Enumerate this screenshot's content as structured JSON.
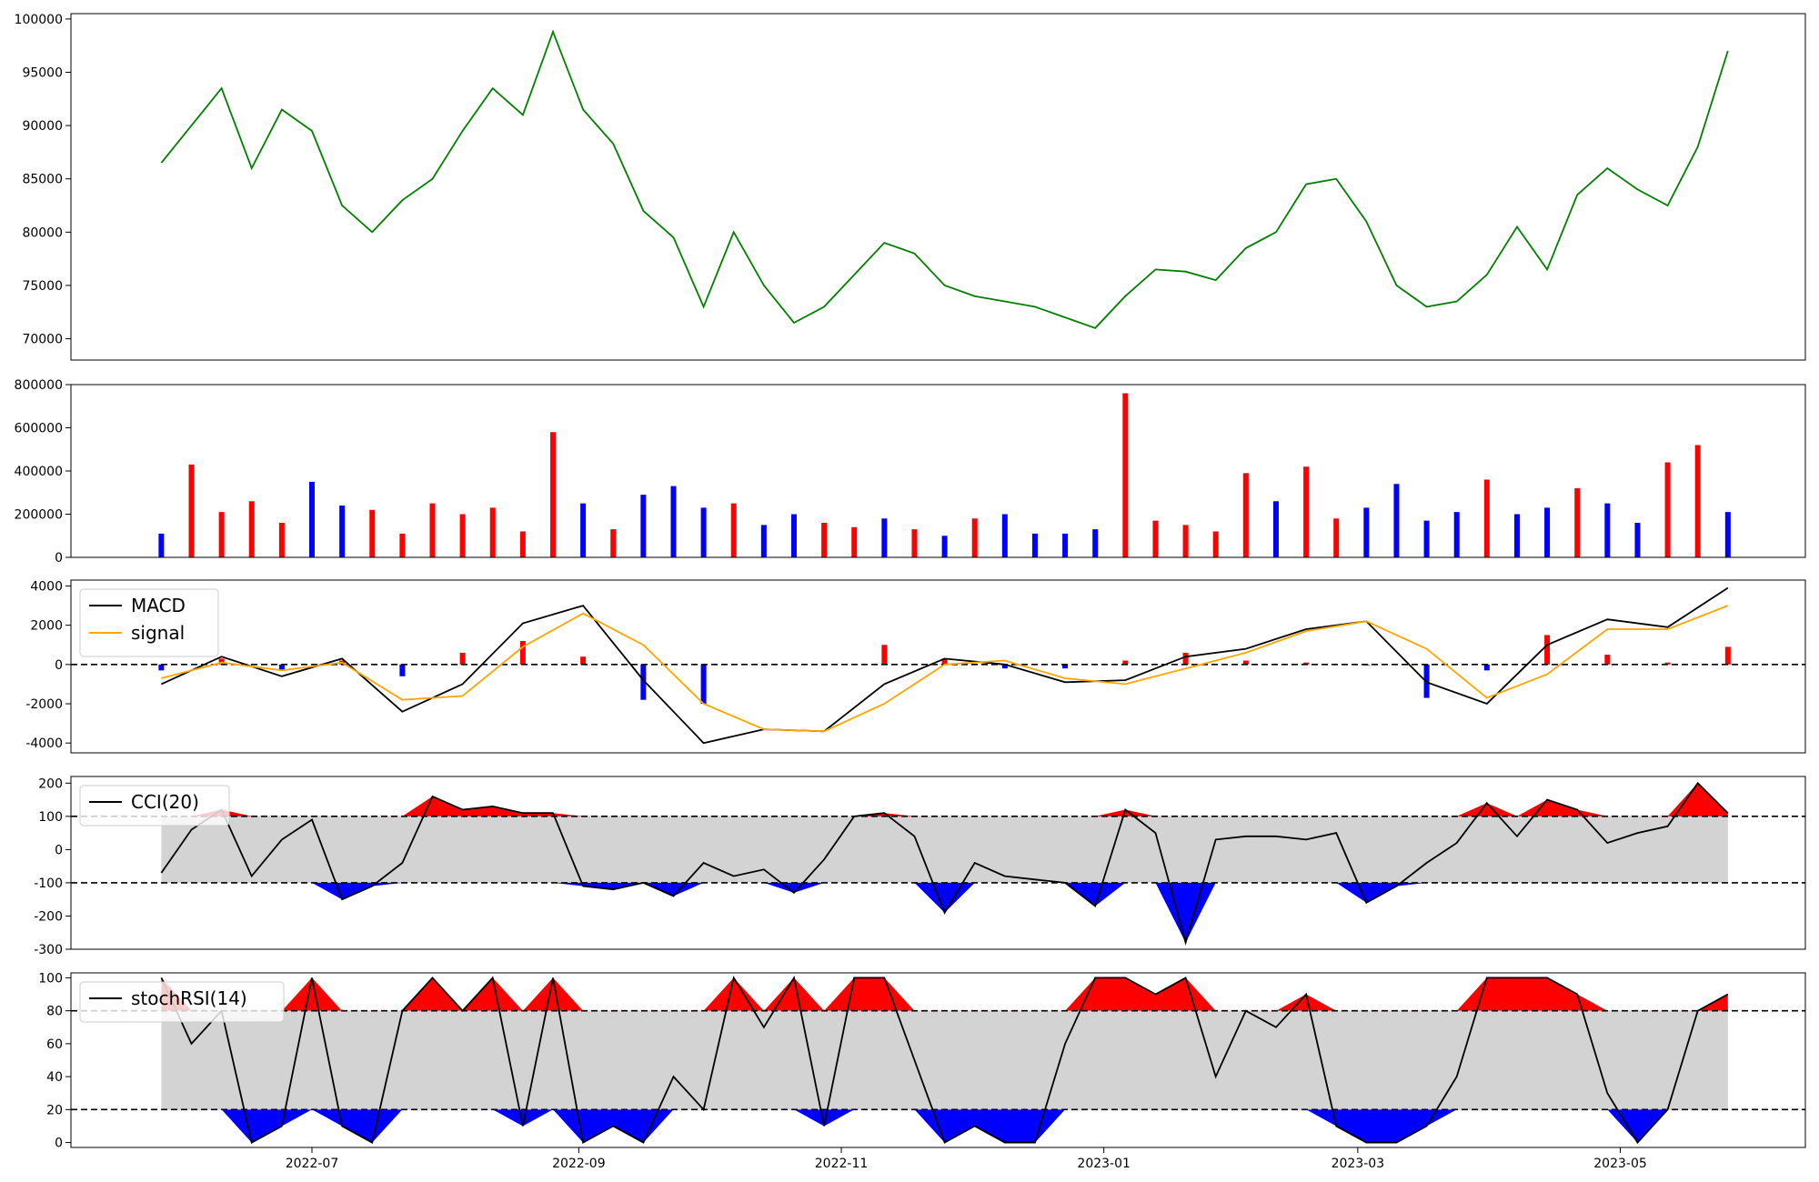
{
  "chart_data": [
    {
      "type": "line",
      "panel": "price",
      "ylim": [
        68000,
        100500
      ],
      "yticks": [
        70000,
        75000,
        80000,
        85000,
        90000,
        95000,
        100000
      ],
      "color": "#008000",
      "series": [
        {
          "x": [
            "2022-05-27",
            "2022-06-03",
            "2022-06-10",
            "2022-06-17",
            "2022-06-24",
            "2022-07-01",
            "2022-07-08",
            "2022-07-15",
            "2022-07-22",
            "2022-07-29",
            "2022-08-05",
            "2022-08-12",
            "2022-08-19",
            "2022-08-26",
            "2022-09-02",
            "2022-09-09",
            "2022-09-16",
            "2022-09-23",
            "2022-09-30",
            "2022-10-07",
            "2022-10-14",
            "2022-10-21",
            "2022-10-28",
            "2022-11-04",
            "2022-11-11",
            "2022-11-18",
            "2022-11-25",
            "2022-12-02",
            "2022-12-09",
            "2022-12-16",
            "2022-12-23",
            "2022-12-30",
            "2023-01-06",
            "2023-01-13",
            "2023-01-20",
            "2023-01-27",
            "2023-02-03",
            "2023-02-10",
            "2023-02-17",
            "2023-02-24",
            "2023-03-03",
            "2023-03-10",
            "2023-03-17",
            "2023-03-24",
            "2023-03-31",
            "2023-04-07",
            "2023-04-14",
            "2023-04-21",
            "2023-04-28",
            "2023-05-05",
            "2023-05-12",
            "2023-05-19",
            "2023-05-26"
          ],
          "values": [
            86500,
            90000,
            93500,
            86000,
            91500,
            89500,
            82500,
            80000,
            83000,
            85000,
            89500,
            93500,
            91000,
            98800,
            91500,
            88300,
            82000,
            79500,
            73000,
            80000,
            75000,
            71500,
            73000,
            76000,
            79000,
            78000,
            75000,
            74000,
            73500,
            73000,
            72000,
            71000,
            74000,
            76500,
            76300,
            75500,
            78500,
            80000,
            84500,
            85000,
            81000,
            75000,
            73000,
            73500,
            76000,
            80500,
            76500,
            83500,
            86000,
            84000,
            82500,
            88000,
            97000
          ]
        }
      ]
    },
    {
      "type": "bar",
      "panel": "volume",
      "ylim": [
        0,
        800000
      ],
      "yticks": [
        0,
        200000,
        400000,
        600000,
        800000
      ],
      "colors": {
        "up": "#ff0000",
        "down": "#0000ff",
        "flat": "#000000"
      },
      "series": [
        {
          "x": [
            "2022-05-27",
            "2022-06-03",
            "2022-06-10",
            "2022-06-17",
            "2022-06-24",
            "2022-07-01",
            "2022-07-08",
            "2022-07-15",
            "2022-07-22",
            "2022-07-29",
            "2022-08-05",
            "2022-08-12",
            "2022-08-19",
            "2022-08-26",
            "2022-09-02",
            "2022-09-09",
            "2022-09-16",
            "2022-09-23",
            "2022-09-30",
            "2022-10-07",
            "2022-10-14",
            "2022-10-21",
            "2022-10-28",
            "2022-11-04",
            "2022-11-11",
            "2022-11-18",
            "2022-11-25",
            "2022-12-02",
            "2022-12-09",
            "2022-12-16",
            "2022-12-23",
            "2022-12-30",
            "2023-01-06",
            "2023-01-13",
            "2023-01-20",
            "2023-01-27",
            "2023-02-03",
            "2023-02-10",
            "2023-02-17",
            "2023-02-24",
            "2023-03-03",
            "2023-03-10",
            "2023-03-17",
            "2023-03-24",
            "2023-03-31",
            "2023-04-07",
            "2023-04-14",
            "2023-04-21",
            "2023-04-28",
            "2023-05-05",
            "2023-05-12",
            "2023-05-19",
            "2023-05-26"
          ],
          "values": [
            110000,
            430000,
            210000,
            260000,
            160000,
            350000,
            240000,
            220000,
            110000,
            250000,
            200000,
            230000,
            120000,
            580000,
            250000,
            130000,
            290000,
            330000,
            230000,
            250000,
            150000,
            200000,
            160000,
            140000,
            180000,
            130000,
            100000,
            180000,
            200000,
            110000,
            110000,
            130000,
            760000,
            170000,
            150000,
            120000,
            390000,
            260000,
            420000,
            180000,
            230000,
            340000,
            170000,
            210000,
            360000,
            200000,
            230000,
            320000,
            250000,
            160000,
            440000,
            520000,
            210000
          ],
          "direction": [
            "down",
            "up",
            "up",
            "up",
            "up",
            "down",
            "down",
            "up",
            "up",
            "up",
            "up",
            "up",
            "up",
            "up",
            "down",
            "up",
            "down",
            "down",
            "down",
            "up",
            "down",
            "down",
            "up",
            "up",
            "down",
            "up",
            "down",
            "up",
            "down",
            "down",
            "down",
            "down",
            "up",
            "up",
            "up",
            "up",
            "up",
            "down",
            "up",
            "up",
            "down",
            "down",
            "down",
            "down",
            "up",
            "down",
            "down",
            "up",
            "down",
            "down",
            "up",
            "up",
            "down"
          ]
        }
      ]
    },
    {
      "type": "line",
      "panel": "macd",
      "ylim": [
        -4500,
        4300
      ],
      "yticks": [
        -4000,
        -2000,
        0,
        2000,
        4000
      ],
      "reference_lines": [
        0
      ],
      "legend": {
        "placement": "top-left",
        "entries": [
          "MACD",
          "signal"
        ]
      },
      "series": [
        {
          "name": "MACD",
          "color": "#000000",
          "x": [
            "2022-05-27",
            "2022-06-10",
            "2022-06-24",
            "2022-07-08",
            "2022-07-22",
            "2022-08-05",
            "2022-08-19",
            "2022-09-02",
            "2022-09-16",
            "2022-09-30",
            "2022-10-14",
            "2022-10-28",
            "2022-11-11",
            "2022-11-25",
            "2022-12-09",
            "2022-12-23",
            "2023-01-06",
            "2023-01-20",
            "2023-02-03",
            "2023-02-17",
            "2023-03-03",
            "2023-03-17",
            "2023-03-31",
            "2023-04-14",
            "2023-04-28",
            "2023-05-12",
            "2023-05-26"
          ],
          "values": [
            -1000,
            400,
            -600,
            300,
            -2400,
            -1000,
            2100,
            3000,
            -800,
            -4000,
            -3300,
            -3400,
            -1000,
            300,
            0,
            -900,
            -800,
            400,
            800,
            1800,
            2200,
            -900,
            -2000,
            1000,
            2300,
            1900,
            3900
          ]
        },
        {
          "name": "signal",
          "color": "#ffa500",
          "x": [
            "2022-05-27",
            "2022-06-10",
            "2022-06-24",
            "2022-07-08",
            "2022-07-22",
            "2022-08-05",
            "2022-08-19",
            "2022-09-02",
            "2022-09-16",
            "2022-09-30",
            "2022-10-14",
            "2022-10-28",
            "2022-11-11",
            "2022-11-25",
            "2022-12-09",
            "2022-12-23",
            "2023-01-06",
            "2023-01-20",
            "2023-02-03",
            "2023-02-17",
            "2023-03-03",
            "2023-03-17",
            "2023-03-31",
            "2023-04-14",
            "2023-04-28",
            "2023-05-12",
            "2023-05-26"
          ],
          "values": [
            -700,
            100,
            -300,
            100,
            -1800,
            -1600,
            900,
            2600,
            1000,
            -2000,
            -3300,
            -3400,
            -2000,
            0,
            200,
            -700,
            -1000,
            -200,
            600,
            1700,
            2200,
            800,
            -1700,
            -500,
            1800,
            1800,
            3000
          ]
        },
        {
          "name": "histogram",
          "type": "bar",
          "colors": {
            "positive": "#ff0000",
            "negative": "#0000ff"
          },
          "x": [
            "2022-05-27",
            "2022-06-10",
            "2022-06-24",
            "2022-07-08",
            "2022-07-22",
            "2022-08-05",
            "2022-08-19",
            "2022-09-02",
            "2022-09-16",
            "2022-09-30",
            "2022-10-14",
            "2022-10-28",
            "2022-11-11",
            "2022-11-25",
            "2022-12-09",
            "2022-12-23",
            "2023-01-06",
            "2023-01-20",
            "2023-02-03",
            "2023-02-17",
            "2023-03-03",
            "2023-03-17",
            "2023-03-31",
            "2023-04-14",
            "2023-04-28",
            "2023-05-12",
            "2023-05-26"
          ],
          "values": [
            -300,
            300,
            -300,
            200,
            -600,
            600,
            1200,
            400,
            -1800,
            -2000,
            0,
            0,
            1000,
            300,
            -200,
            -200,
            200,
            600,
            200,
            100,
            0,
            -1700,
            -300,
            1500,
            500,
            100,
            900
          ]
        }
      ]
    },
    {
      "type": "line",
      "panel": "cci",
      "ylim": [
        -300,
        220
      ],
      "yticks": [
        -300,
        -200,
        -100,
        0,
        100,
        200
      ],
      "band": [
        -100,
        100
      ],
      "reference_lines": [
        -100,
        100
      ],
      "fill_colors": {
        "above": "#ff0000",
        "below": "#0000ff",
        "band": "#d3d3d3"
      },
      "legend": {
        "placement": "top-left",
        "entries": [
          "CCI(20)"
        ]
      },
      "series": [
        {
          "name": "CCI(20)",
          "color": "#000000",
          "x": [
            "2022-05-27",
            "2022-06-03",
            "2022-06-10",
            "2022-06-17",
            "2022-06-24",
            "2022-07-01",
            "2022-07-08",
            "2022-07-15",
            "2022-07-22",
            "2022-07-29",
            "2022-08-05",
            "2022-08-12",
            "2022-08-19",
            "2022-08-26",
            "2022-09-02",
            "2022-09-09",
            "2022-09-16",
            "2022-09-23",
            "2022-09-30",
            "2022-10-07",
            "2022-10-14",
            "2022-10-21",
            "2022-10-28",
            "2022-11-04",
            "2022-11-11",
            "2022-11-18",
            "2022-11-25",
            "2022-12-02",
            "2022-12-09",
            "2022-12-16",
            "2022-12-23",
            "2022-12-30",
            "2023-01-06",
            "2023-01-13",
            "2023-01-20",
            "2023-01-27",
            "2023-02-03",
            "2023-02-10",
            "2023-02-17",
            "2023-02-24",
            "2023-03-03",
            "2023-03-10",
            "2023-03-17",
            "2023-03-24",
            "2023-03-31",
            "2023-04-07",
            "2023-04-14",
            "2023-04-21",
            "2023-04-28",
            "2023-05-05",
            "2023-05-12",
            "2023-05-19",
            "2023-05-26"
          ],
          "values": [
            -70,
            60,
            120,
            -80,
            30,
            90,
            -150,
            -110,
            -40,
            160,
            120,
            130,
            110,
            110,
            -110,
            -120,
            -100,
            -140,
            -40,
            -80,
            -60,
            -130,
            -30,
            100,
            110,
            40,
            -190,
            -40,
            -80,
            -90,
            -100,
            -170,
            120,
            50,
            -280,
            30,
            40,
            40,
            30,
            50,
            -160,
            -110,
            -40,
            20,
            140,
            40,
            150,
            120,
            20,
            50,
            70,
            200,
            110
          ]
        }
      ]
    },
    {
      "type": "line",
      "panel": "stochrsi",
      "ylim": [
        -3,
        103
      ],
      "yticks": [
        0,
        20,
        40,
        60,
        80,
        100
      ],
      "band": [
        20,
        80
      ],
      "reference_lines": [
        20,
        80
      ],
      "fill_colors": {
        "above": "#ff0000",
        "below": "#0000ff",
        "band": "#d3d3d3"
      },
      "legend": {
        "placement": "top-left",
        "entries": [
          "stochRSI(14)"
        ]
      },
      "series": [
        {
          "name": "stochRSI(14)",
          "color": "#000000",
          "x": [
            "2022-05-27",
            "2022-06-03",
            "2022-06-10",
            "2022-06-17",
            "2022-06-24",
            "2022-07-01",
            "2022-07-08",
            "2022-07-15",
            "2022-07-22",
            "2022-07-29",
            "2022-08-05",
            "2022-08-12",
            "2022-08-19",
            "2022-08-26",
            "2022-09-02",
            "2022-09-09",
            "2022-09-16",
            "2022-09-23",
            "2022-09-30",
            "2022-10-07",
            "2022-10-14",
            "2022-10-21",
            "2022-10-28",
            "2022-11-04",
            "2022-11-11",
            "2022-11-18",
            "2022-11-25",
            "2022-12-02",
            "2022-12-09",
            "2022-12-16",
            "2022-12-23",
            "2022-12-30",
            "2023-01-06",
            "2023-01-13",
            "2023-01-20",
            "2023-01-27",
            "2023-02-03",
            "2023-02-10",
            "2023-02-17",
            "2023-02-24",
            "2023-03-03",
            "2023-03-10",
            "2023-03-17",
            "2023-03-24",
            "2023-03-31",
            "2023-04-07",
            "2023-04-14",
            "2023-04-21",
            "2023-04-28",
            "2023-05-05",
            "2023-05-12",
            "2023-05-19",
            "2023-05-26"
          ],
          "values": [
            100,
            60,
            80,
            0,
            10,
            100,
            10,
            0,
            80,
            100,
            80,
            100,
            10,
            100,
            0,
            10,
            0,
            40,
            20,
            100,
            70,
            100,
            10,
            100,
            100,
            50,
            0,
            10,
            0,
            0,
            60,
            100,
            100,
            90,
            100,
            40,
            80,
            70,
            90,
            10,
            0,
            0,
            10,
            40,
            100,
            100,
            100,
            90,
            30,
            0,
            20,
            80,
            90
          ]
        }
      ]
    },
    {
      "type": "axis",
      "panel": "shared-x",
      "xticks": [
        "2022-07",
        "2022-09",
        "2022-11",
        "2023-01",
        "2023-03",
        "2023-05"
      ]
    }
  ]
}
